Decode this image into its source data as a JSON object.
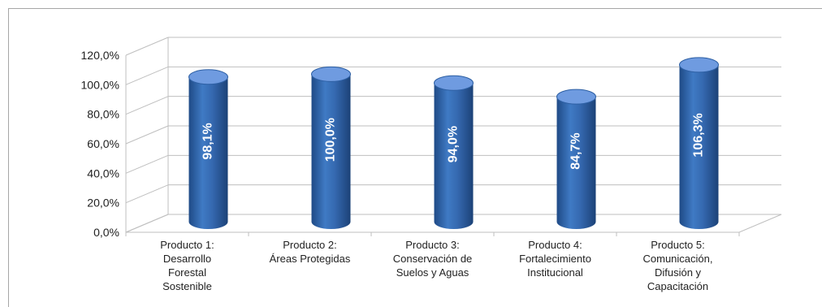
{
  "chart_data": {
    "type": "bar",
    "style": "3d-cylinder",
    "categories": [
      [
        "Producto 1:",
        "Desarrollo",
        "Forestal",
        "Sostenible"
      ],
      [
        "Producto 2:",
        "Áreas Protegidas"
      ],
      [
        "Producto 3:",
        "Conservación de",
        "Suelos y Aguas"
      ],
      [
        "Producto 4:",
        "Fortalecimiento",
        "Institucional"
      ],
      [
        "Producto 5:",
        "Comunicación,",
        "Difusión y",
        "Capacitación"
      ]
    ],
    "values": [
      98.1,
      100.0,
      94.0,
      84.7,
      106.3
    ],
    "data_labels": [
      "98,1%",
      "100,0%",
      "94,0%",
      "84,7%",
      "106,3%"
    ],
    "y_ticks": [
      "0,0%",
      "20,0%",
      "40,0%",
      "60,0%",
      "80,0%",
      "100,0%",
      "120,0%"
    ],
    "ylim": [
      0,
      120
    ],
    "grid": true,
    "legend": "none",
    "colors": {
      "bar": "#3a6fb6",
      "bar_dark": "#1f4a86",
      "bar_top": "#6f9be0",
      "grid": "#bfbfbf",
      "wall": "#d9d9d9"
    }
  }
}
